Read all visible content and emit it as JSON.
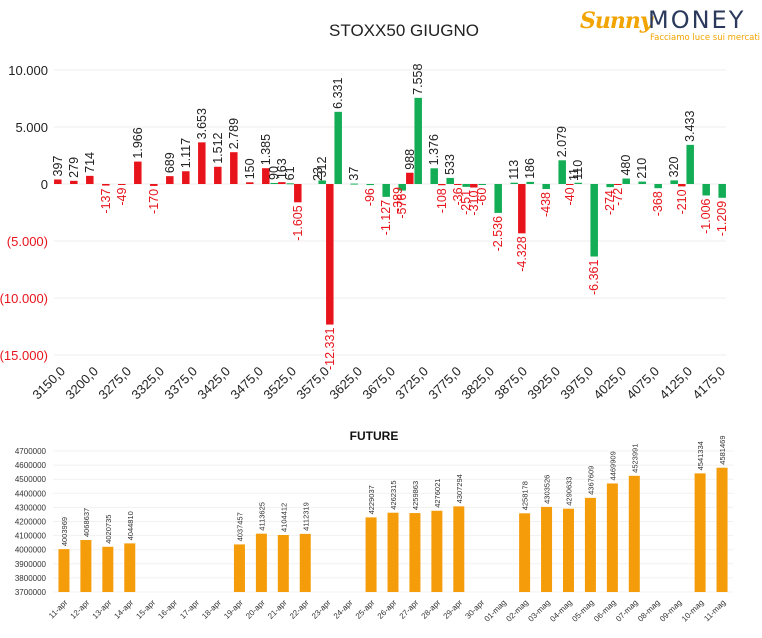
{
  "logo": {
    "brand_part1": "Sunny",
    "brand_part2": "MONEY",
    "tagline": "Facciamo luce sui mercati"
  },
  "chart_data": [
    {
      "type": "bar",
      "title": "STOXX50 GIUGNO",
      "ylim": [
        -15000,
        10000
      ],
      "yticks": [
        "10.000",
        "5.000",
        "0",
        "(5.000)",
        "(10.000)",
        "(15.000)"
      ],
      "categories": [
        "3150,0",
        "3175,0",
        "3200,0",
        "3225,0",
        "3250,0",
        "3275,0",
        "3300,0",
        "3325,0",
        "3350,0",
        "3375,0",
        "3400,0",
        "3425,0",
        "3450,0",
        "3475,0",
        "3500,0",
        "3525,0",
        "3550,0",
        "3575,0",
        "3600,0",
        "3625,0",
        "3650,0",
        "3675,0",
        "3700,0",
        "3725,0",
        "3750,0",
        "3775,0",
        "3800,0",
        "3825,0",
        "3850,0",
        "3875,0",
        "3900,0",
        "3925,0",
        "3950,0",
        "3975,0",
        "4000,0",
        "4025,0",
        "4050,0",
        "4075,0",
        "4100,0",
        "4125,0",
        "4150,0",
        "4175,0"
      ],
      "xtick_labels": [
        "3150,0",
        "3200,0",
        "3275,0",
        "3325,0",
        "3375,0",
        "3425,0",
        "3475,0",
        "3525,0",
        "3575,0",
        "3625,0",
        "3675,0",
        "3725,0",
        "3775,0",
        "3825,0",
        "3875,0",
        "3925,0",
        "3975,0",
        "4025,0",
        "4075,0",
        "4125,0",
        "4175,0"
      ],
      "series": [
        {
          "color": "#e8141c",
          "values": [
            397,
            279,
            714,
            -137,
            -49,
            1966,
            -170,
            689,
            1117,
            3653,
            1512,
            2789,
            150,
            1385,
            163,
            -1605,
            null,
            -12331,
            null,
            null,
            null,
            null,
            988,
            null,
            -108,
            -36,
            -310,
            null,
            null,
            -4328,
            null,
            null,
            -40,
            null,
            null,
            -72,
            null,
            null,
            null,
            -210,
            null,
            null
          ],
          "labels": [
            "397",
            "279",
            "714",
            "-137",
            "-49",
            "1.966",
            "-170",
            "689",
            "1.117",
            "3.653",
            "1.512",
            "2.789",
            "150",
            "1.385",
            "163",
            "-1.605",
            "",
            "-12.331",
            "",
            "",
            "",
            "",
            "988",
            "",
            "-108",
            "-36",
            "-310",
            "",
            "",
            "-4.328",
            "",
            "",
            "-40",
            "",
            "",
            "-72",
            "",
            "",
            "",
            "-210",
            "",
            ""
          ]
        },
        {
          "color": "#13ad55",
          "values": [
            null,
            null,
            null,
            null,
            null,
            null,
            null,
            null,
            null,
            null,
            null,
            null,
            null,
            90,
            61,
            null,
            312,
            6331,
            37,
            -96,
            -1127,
            -576,
            7558,
            1376,
            533,
            -251,
            -60,
            -2536,
            113,
            186,
            -438,
            2079,
            110,
            -6361,
            -274,
            480,
            210,
            -368,
            320,
            3433,
            -1006,
            -1209
          ],
          "labels": [
            "",
            "",
            "",
            "",
            "",
            "",
            "",
            "",
            "",
            "",
            "",
            "",
            "",
            "90",
            "61",
            "",
            "312",
            "6.331",
            "37",
            "-96",
            "-1.127",
            "-576",
            "7.558",
            "1.376",
            "533",
            "-251",
            "-60",
            "-2.536",
            "113",
            "186",
            "-438",
            "2.079",
            "110",
            "-6.361",
            "-274",
            "480",
            "210",
            "-368",
            "320",
            "3.433",
            "-1.006",
            "-1.209"
          ]
        }
      ],
      "extra_labels": [
        {
          "category_index": 16,
          "text": "23"
        },
        {
          "category_index": 21,
          "text": "-389"
        },
        {
          "category_index": 32,
          "text": "11"
        }
      ]
    },
    {
      "type": "bar",
      "title": "FUTURE",
      "ylim": [
        3700000,
        4700000
      ],
      "yticks": [
        "4700000",
        "4600000",
        "4500000",
        "4400000",
        "4300000",
        "4200000",
        "4100000",
        "4000000",
        "3900000",
        "3800000",
        "3700000"
      ],
      "categories": [
        "11-apr",
        "12-apr",
        "13-apr",
        "14-apr",
        "15-apr",
        "16-apr",
        "17-apr",
        "18-apr",
        "19-apr",
        "20-apr",
        "21-apr",
        "22-apr",
        "23-apr",
        "24-apr",
        "25-apr",
        "26-apr",
        "27-apr",
        "28-apr",
        "29-apr",
        "30-apr",
        "01-mag",
        "02-mag",
        "03-mag",
        "04-mag",
        "05-mag",
        "06-mag",
        "07-mag",
        "08-mag",
        "09-mag",
        "10-mag",
        "11-mag"
      ],
      "values": [
        4003969,
        4068637,
        4020735,
        4044810,
        null,
        null,
        null,
        null,
        4037457,
        4113625,
        4104412,
        4112319,
        null,
        null,
        4229037,
        4262315,
        4259863,
        4276021,
        4307294,
        null,
        null,
        4258178,
        4303526,
        4290633,
        4367609,
        4469909,
        4523991,
        null,
        null,
        4541334,
        4581469
      ],
      "labels": [
        "4003969",
        "4068637",
        "4020735",
        "4044810",
        "",
        "",
        "",
        "",
        "4037457",
        "4113625",
        "4104412",
        "4112319",
        "",
        "",
        "4229037",
        "4262315",
        "4259863",
        "4276021",
        "4307294",
        "",
        "",
        "4258178",
        "4303526",
        "4290633",
        "4367609",
        "4469909",
        "4523991",
        "",
        "",
        "4541334",
        "4581469"
      ],
      "color": "#f59c0a"
    }
  ]
}
